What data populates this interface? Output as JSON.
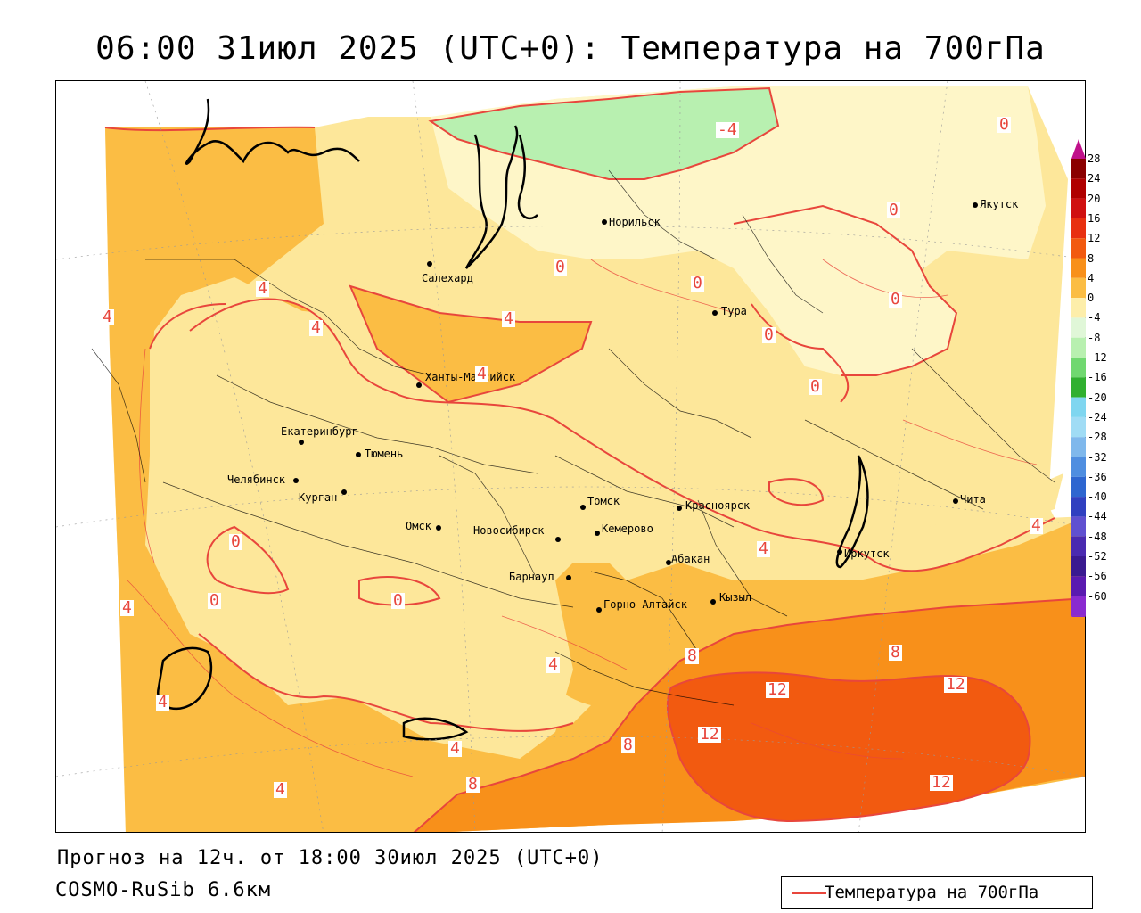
{
  "title": "06:00 31июл 2025 (UTC+0): Температура на 700гПа",
  "footer": {
    "forecast_info": "Прогноз на 12ч. от 18:00 30июл 2025 (UTC+0)",
    "model": "COSMO-RuSib 6.6км"
  },
  "legend": {
    "label": "Температура на 700гПа",
    "line_color": "#e8463c"
  },
  "colorbar": {
    "unit_note": "",
    "levels": [
      "28",
      "24",
      "20",
      "16",
      "12",
      "8",
      "4",
      "0",
      "-4",
      "-8",
      "-12",
      "-16",
      "-20",
      "-24",
      "-28",
      "-32",
      "-36",
      "-40",
      "-44",
      "-48",
      "-52",
      "-56",
      "-60"
    ],
    "colors": [
      "#8a0000",
      "#b00000",
      "#d01010",
      "#e83010",
      "#f25a10",
      "#f8901a",
      "#fbbd44",
      "#fdeeaa",
      "#e0f7d8",
      "#b8f0b0",
      "#70d870",
      "#30b030",
      "#7fd6f0",
      "#a0dcf5",
      "#7fb8ec",
      "#4f8ee0",
      "#2e66d0",
      "#3040c0",
      "#6050d0",
      "#4a2ab0",
      "#3a1a90",
      "#5a1ab0",
      "#8a2ad0"
    ]
  },
  "cities": [
    {
      "name": "Норильск"
    },
    {
      "name": "Якутск"
    },
    {
      "name": "Салехард"
    },
    {
      "name": "Тура"
    },
    {
      "name": "Ханты-Мансийск"
    },
    {
      "name": "Екатеринбург"
    },
    {
      "name": "Тюмень"
    },
    {
      "name": "Челябинск"
    },
    {
      "name": "Курган"
    },
    {
      "name": "Омск"
    },
    {
      "name": "Новосибирск"
    },
    {
      "name": "Томск"
    },
    {
      "name": "Кемерово"
    },
    {
      "name": "Барнаул"
    },
    {
      "name": "Красноярск"
    },
    {
      "name": "Абакан"
    },
    {
      "name": "Горно-Алтайск"
    },
    {
      "name": "Кызыл"
    },
    {
      "name": "Иркутск"
    },
    {
      "name": "Чита"
    }
  ],
  "isoline_labels": [
    "-4",
    "0",
    "0",
    "0",
    "0",
    "0",
    "0",
    "0",
    "4",
    "4",
    "4",
    "4",
    "4",
    "4",
    "4",
    "4",
    "4",
    "0",
    "0",
    "0",
    "8",
    "8",
    "8",
    "8",
    "12",
    "12",
    "12",
    "12",
    "4",
    "4",
    "4"
  ],
  "colors": {
    "zone_4_8": "#fbbd44",
    "zone_0_4": "#fde79a",
    "zone_m4_0": "#fef6c8",
    "zone_m8_m4": "#b8f0b0",
    "zone_8_12": "#f8901a",
    "zone_12_16": "#f25a10",
    "contour": "#e8463c",
    "border": "#000000"
  }
}
